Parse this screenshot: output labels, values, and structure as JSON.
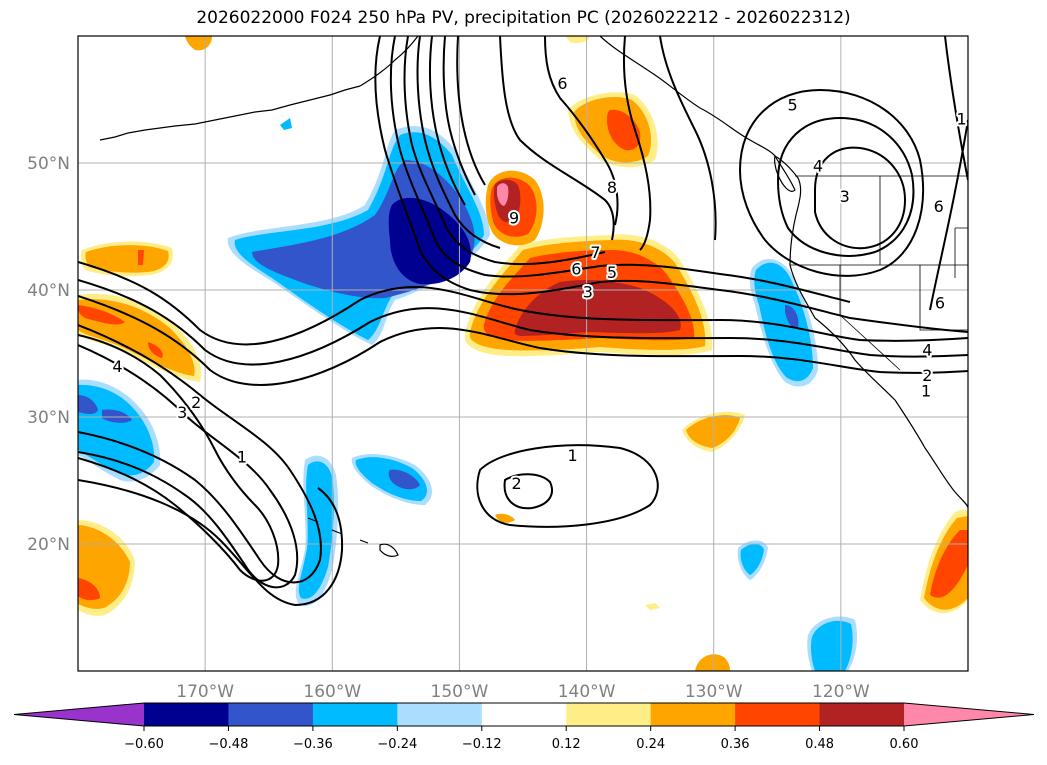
{
  "title": "2026022000 F024 250 hPa PV, precipitation PC (2026022212 - 2026022312)",
  "map": {
    "lon_range": [
      -180,
      -110
    ],
    "lat_range": [
      10,
      60
    ],
    "lon_ticks": [
      {
        "value": -170,
        "label": "170°W"
      },
      {
        "value": -160,
        "label": "160°W"
      },
      {
        "value": -150,
        "label": "150°W"
      },
      {
        "value": -140,
        "label": "140°W"
      },
      {
        "value": -130,
        "label": "130°W"
      },
      {
        "value": -120,
        "label": "120°W"
      }
    ],
    "lat_ticks": [
      {
        "value": 20,
        "label": "20°N"
      },
      {
        "value": 30,
        "label": "30°N"
      },
      {
        "value": 40,
        "label": "40°N"
      },
      {
        "value": 50,
        "label": "50°N"
      }
    ],
    "grid": true,
    "contour_labels": [
      {
        "text": "6",
        "lon": -141.9,
        "lat": 56.3
      },
      {
        "text": "8",
        "lon": -138.0,
        "lat": 48.1
      },
      {
        "text": "9",
        "lon": -145.7,
        "lat": 45.7
      },
      {
        "text": "7",
        "lon": -139.3,
        "lat": 43.0
      },
      {
        "text": "6",
        "lon": -140.8,
        "lat": 41.7
      },
      {
        "text": "5",
        "lon": -138.0,
        "lat": 41.4
      },
      {
        "text": "3",
        "lon": -139.9,
        "lat": 39.9
      },
      {
        "text": "5",
        "lon": -123.8,
        "lat": 54.6
      },
      {
        "text": "4",
        "lon": -121.8,
        "lat": 49.8
      },
      {
        "text": "3",
        "lon": -119.7,
        "lat": 47.4
      },
      {
        "text": "1",
        "lon": -110.5,
        "lat": 53.5
      },
      {
        "text": "6",
        "lon": -112.3,
        "lat": 46.6
      },
      {
        "text": "6",
        "lon": -112.2,
        "lat": 39.0
      },
      {
        "text": "4",
        "lon": -113.2,
        "lat": 35.3
      },
      {
        "text": "2",
        "lon": -113.2,
        "lat": 33.3
      },
      {
        "text": "1",
        "lon": -113.3,
        "lat": 32.1
      },
      {
        "text": "4",
        "lon": -176.9,
        "lat": 34.0
      },
      {
        "text": "3",
        "lon": -171.8,
        "lat": 30.4
      },
      {
        "text": "2",
        "lon": -170.7,
        "lat": 31.2
      },
      {
        "text": "1",
        "lon": -167.1,
        "lat": 26.9
      },
      {
        "text": "1",
        "lon": -141.1,
        "lat": 27.0
      },
      {
        "text": "2",
        "lon": -145.5,
        "lat": 24.8
      }
    ]
  },
  "colorbar": {
    "colors": [
      "#9933cc",
      "#000090",
      "#3355cc",
      "#00bbff",
      "#aaddff",
      "#ffffff",
      "#ffee88",
      "#ffa500",
      "#ff4500",
      "#b22222",
      "#ff88aa"
    ],
    "tick_labels": [
      "−0.60",
      "−0.48",
      "−0.36",
      "−0.24",
      "−0.12",
      "0.12",
      "0.24",
      "0.36",
      "0.48",
      "0.60"
    ]
  }
}
